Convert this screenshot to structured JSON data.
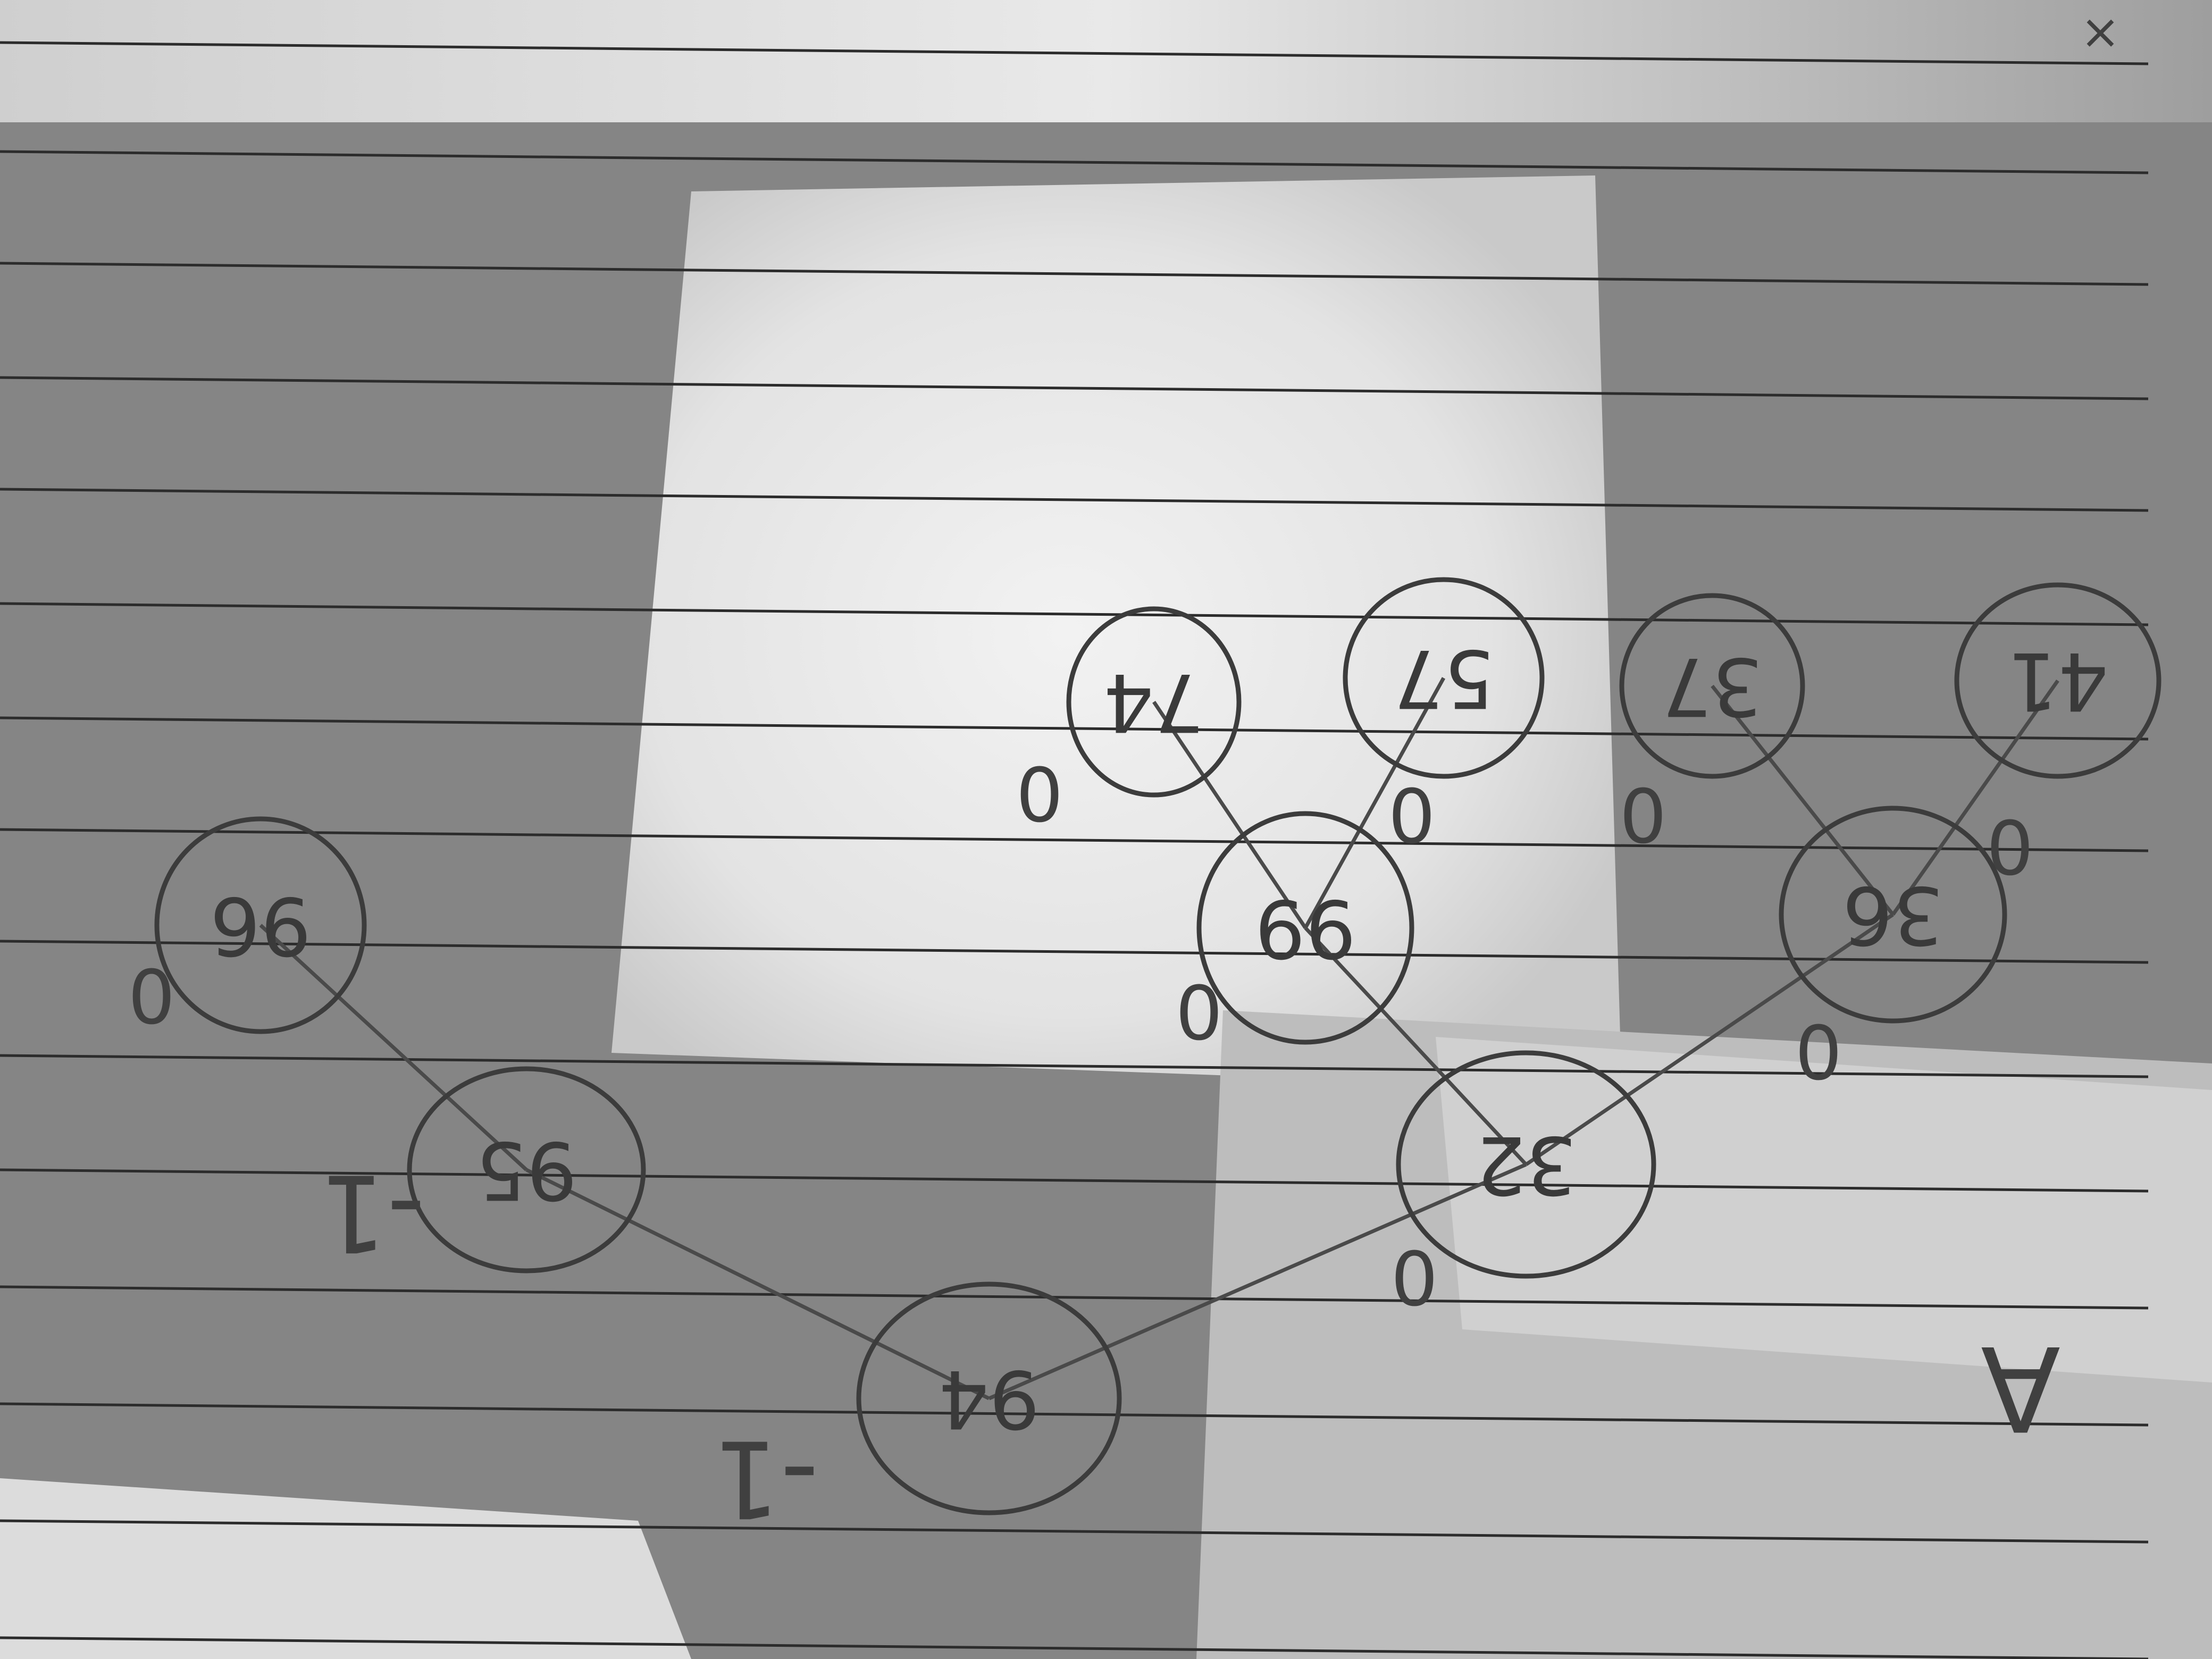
{
  "tree": {
    "nodes": [
      {
        "id": "n94",
        "label": "94",
        "flipped": true
      },
      {
        "id": "n95",
        "label": "95",
        "flipped": true
      },
      {
        "id": "n96",
        "label": "96",
        "flipped": true
      },
      {
        "id": "n32",
        "label": "32",
        "flipped": true
      },
      {
        "id": "n99",
        "label": "99",
        "flipped": true
      },
      {
        "id": "n74",
        "label": "74",
        "flipped": true
      },
      {
        "id": "n57",
        "label": "57",
        "flipped": true
      },
      {
        "id": "n36",
        "label": "36",
        "flipped": true
      },
      {
        "id": "n37",
        "label": "37",
        "flipped": true
      },
      {
        "id": "n41",
        "label": "41",
        "flipped": true
      }
    ],
    "edges": [
      {
        "from": "n94",
        "to": "n95"
      },
      {
        "from": "n95",
        "to": "n96"
      },
      {
        "from": "n94",
        "to": "n32"
      },
      {
        "from": "n32",
        "to": "n99"
      },
      {
        "from": "n99",
        "to": "n74"
      },
      {
        "from": "n99",
        "to": "n57"
      },
      {
        "from": "n32",
        "to": "n36"
      },
      {
        "from": "n36",
        "to": "n37"
      },
      {
        "from": "n36",
        "to": "n41"
      }
    ],
    "annotations": [
      {
        "id": "bf-94",
        "text": "-1"
      },
      {
        "id": "bf-95",
        "text": "-1"
      },
      {
        "id": "bf-96",
        "text": "0"
      },
      {
        "id": "bf-32",
        "text": "0"
      },
      {
        "id": "bf-99",
        "text": "0"
      },
      {
        "id": "bf-74",
        "text": "0"
      },
      {
        "id": "bf-57",
        "text": "0"
      },
      {
        "id": "bf-36",
        "text": "0"
      },
      {
        "id": "bf-37",
        "text": "0"
      },
      {
        "id": "bf-41",
        "text": "0"
      },
      {
        "id": "corner-x",
        "text": "×"
      },
      {
        "id": "corner-label",
        "text": "A"
      }
    ]
  },
  "colors": {
    "paper": "#8a8a8a",
    "light_patch": "#ededed",
    "ink": "#3c3c3c"
  }
}
